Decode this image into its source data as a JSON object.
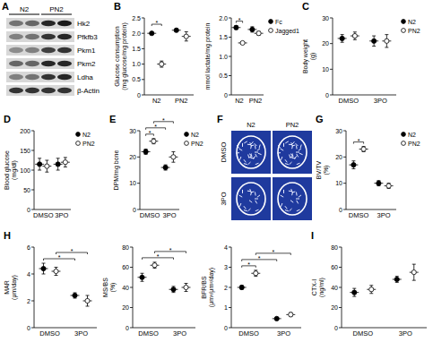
{
  "blot": {
    "title": "A",
    "columns": [
      "N2",
      "PN2"
    ],
    "rows": [
      "Hk2",
      "Pfkfb3",
      "Pkm1",
      "Pkm2",
      "Ldha",
      "β-Actin"
    ]
  },
  "micro_ct": {
    "title": "F",
    "rows": [
      "DMSO",
      "3PO"
    ],
    "columns": [
      "N2",
      "PN2"
    ]
  },
  "chart_data": [
    {
      "type": "dot",
      "title": "B",
      "y_label": "Glucose consumption (mg glucose/mg protein)",
      "categories": [
        "N2",
        "PN2"
      ],
      "series": [
        {
          "color": "#000000",
          "marker": "filled",
          "values": [
            2.0,
            2.1
          ],
          "errors": [
            0.03,
            0.05
          ]
        },
        {
          "color": "#000000",
          "marker": "open",
          "values": [
            1.0,
            1.9
          ],
          "errors": [
            0.1,
            0.15
          ]
        }
      ],
      "ylim": [
        0,
        2.5
      ],
      "yticks": [
        0,
        0.5,
        {
          "value": 1,
          "label": "1.0"
        },
        1.5,
        {
          "value": 2,
          "label": "2.0"
        },
        2.5
      ],
      "significance": [
        {
          "from": [
            0,
            0
          ],
          "to": [
            0,
            1
          ],
          "label": "*"
        }
      ]
    },
    {
      "type": "dot",
      "y_label": "mmol lactate/mg protein",
      "categories": [
        "N2",
        "PN2"
      ],
      "series": [
        {
          "name": "Fc",
          "color": "#000000",
          "marker": "filled",
          "values": [
            1.75,
            1.7
          ],
          "errors": [
            0.05,
            0.07
          ]
        },
        {
          "name": "Jagged1",
          "color": "#000000",
          "marker": "open",
          "values": [
            1.35,
            1.6
          ],
          "errors": [
            0.03,
            0.05
          ]
        }
      ],
      "ylim": [
        0,
        2
      ],
      "yticks": [
        0,
        0.5,
        {
          "value": 1,
          "label": "1.0"
        },
        1.5,
        {
          "value": 2,
          "label": "2.0"
        }
      ],
      "legend": "right",
      "significance": [
        {
          "from": [
            0,
            0
          ],
          "to": [
            0,
            1
          ],
          "label": "*"
        }
      ]
    },
    {
      "type": "dot",
      "title": "C",
      "y_label": "Body weight (g)",
      "categories": [
        "DMSO",
        "3PO"
      ],
      "series": [
        {
          "name": "N2",
          "color": "#000000",
          "marker": "filled",
          "values": [
            22,
            21
          ],
          "errors": [
            1.5,
            2
          ]
        },
        {
          "name": "PN2",
          "color": "#000000",
          "marker": "open",
          "values": [
            23,
            21
          ],
          "errors": [
            1.5,
            2.5
          ]
        }
      ],
      "ylim": [
        0,
        30
      ],
      "yticks": [
        0,
        10,
        20,
        30
      ],
      "legend": "right",
      "significance": []
    },
    {
      "type": "dot",
      "title": "D",
      "y_label": "Blood glucose (mg/dl)",
      "categories": [
        "DMSO",
        "3PO"
      ],
      "series": [
        {
          "name": "N2",
          "color": "#000000",
          "marker": "filled",
          "values": [
            115,
            115
          ],
          "errors": [
            15,
            15
          ]
        },
        {
          "name": "PN2",
          "color": "#000000",
          "marker": "open",
          "values": [
            110,
            120
          ],
          "errors": [
            15,
            12
          ]
        }
      ],
      "ylim": [
        0,
        200
      ],
      "yticks": [
        0,
        50,
        100,
        150,
        200
      ],
      "legend": "right",
      "significance": []
    },
    {
      "type": "dot",
      "title": "E",
      "y_label": "DPM/mg bone",
      "categories": [
        "DMSO",
        "3PO"
      ],
      "series": [
        {
          "name": "N2",
          "color": "#000000",
          "marker": "filled",
          "values": [
            22,
            16
          ],
          "errors": [
            1,
            1
          ]
        },
        {
          "name": "PN2",
          "color": "#000000",
          "marker": "open",
          "values": [
            26,
            20
          ],
          "errors": [
            1,
            2
          ]
        }
      ],
      "ylim": [
        0,
        30
      ],
      "yticks": [
        0,
        10,
        20,
        30
      ],
      "legend": "right",
      "significance": [
        {
          "from": [
            0,
            0
          ],
          "to": [
            0,
            1
          ],
          "label": "*"
        },
        {
          "from": [
            0,
            0
          ],
          "to": [
            1,
            0
          ],
          "label": "*"
        },
        {
          "from": [
            0,
            1
          ],
          "to": [
            1,
            1
          ],
          "label": "*"
        }
      ]
    },
    {
      "type": "dot",
      "title": "G",
      "y_label": "BV/TV (%)",
      "categories": [
        "DMSO",
        "3PO"
      ],
      "series": [
        {
          "name": "N2",
          "color": "#000000",
          "marker": "filled",
          "values": [
            17,
            10
          ],
          "errors": [
            1.5,
            1
          ]
        },
        {
          "name": "PN2",
          "color": "#000000",
          "marker": "open",
          "values": [
            23,
            9
          ],
          "errors": [
            1,
            1
          ]
        }
      ],
      "ylim": [
        0,
        30
      ],
      "yticks": [
        0,
        10,
        20,
        30
      ],
      "legend": "right",
      "significance": [
        {
          "from": [
            0,
            0
          ],
          "to": [
            0,
            1
          ],
          "label": "*"
        }
      ]
    },
    {
      "type": "dot",
      "title": "H",
      "y_label": "MAR (μm/day)",
      "categories": [
        "DMSO",
        "3PO"
      ],
      "series": [
        {
          "color": "#000000",
          "marker": "filled",
          "values": [
            4.4,
            2.4
          ],
          "errors": [
            0.4,
            0.2
          ]
        },
        {
          "color": "#000000",
          "marker": "open",
          "values": [
            4.2,
            2.0
          ],
          "errors": [
            0.3,
            0.4
          ]
        }
      ],
      "ylim": [
        0,
        6
      ],
      "yticks": [
        0,
        2,
        4,
        6
      ],
      "significance": [
        {
          "from": [
            0,
            0
          ],
          "to": [
            1,
            0
          ],
          "label": "*"
        },
        {
          "from": [
            0,
            1
          ],
          "to": [
            1,
            1
          ],
          "label": "*"
        }
      ]
    },
    {
      "type": "dot",
      "y_label": "MS/BS (%)",
      "categories": [
        "DMSO",
        "3PO"
      ],
      "series": [
        {
          "color": "#000000",
          "marker": "filled",
          "values": [
            50,
            38
          ],
          "errors": [
            4,
            3
          ]
        },
        {
          "color": "#000000",
          "marker": "open",
          "values": [
            62,
            40
          ],
          "errors": [
            3,
            4
          ]
        }
      ],
      "ylim": [
        0,
        80
      ],
      "yticks": [
        0,
        20,
        40,
        60,
        80
      ],
      "significance": [
        {
          "from": [
            0,
            0
          ],
          "to": [
            1,
            0
          ],
          "label": "*"
        },
        {
          "from": [
            0,
            1
          ],
          "to": [
            1,
            1
          ],
          "label": "*"
        }
      ]
    },
    {
      "type": "dot",
      "y_label": "BFR/BS (μm³/μm²/day)",
      "categories": [
        "DMSO",
        "3PO"
      ],
      "series": [
        {
          "color": "#000000",
          "marker": "filled",
          "values": [
            2.0,
            0.45
          ],
          "errors": [
            0.1,
            0.05
          ]
        },
        {
          "color": "#000000",
          "marker": "open",
          "values": [
            2.7,
            0.65
          ],
          "errors": [
            0.15,
            0.1
          ]
        }
      ],
      "ylim": [
        0,
        4
      ],
      "yticks": [
        0,
        1,
        2,
        3,
        4
      ],
      "significance": [
        {
          "from": [
            0,
            0
          ],
          "to": [
            0,
            1
          ],
          "label": "*"
        },
        {
          "from": [
            0,
            0
          ],
          "to": [
            1,
            0
          ],
          "label": "*"
        },
        {
          "from": [
            0,
            1
          ],
          "to": [
            1,
            1
          ],
          "label": "*"
        }
      ]
    },
    {
      "type": "dot",
      "title": "I",
      "y_label": "CTX-I (ng/ml)",
      "categories": [
        "DMSO",
        "3PO"
      ],
      "series": [
        {
          "color": "#000000",
          "marker": "filled",
          "values": [
            35,
            48
          ],
          "errors": [
            4,
            3
          ]
        },
        {
          "color": "#000000",
          "marker": "open",
          "values": [
            38,
            55
          ],
          "errors": [
            4,
            8
          ]
        }
      ],
      "ylim": [
        0,
        80
      ],
      "yticks": [
        0,
        20,
        40,
        60,
        80
      ],
      "significance": []
    }
  ]
}
